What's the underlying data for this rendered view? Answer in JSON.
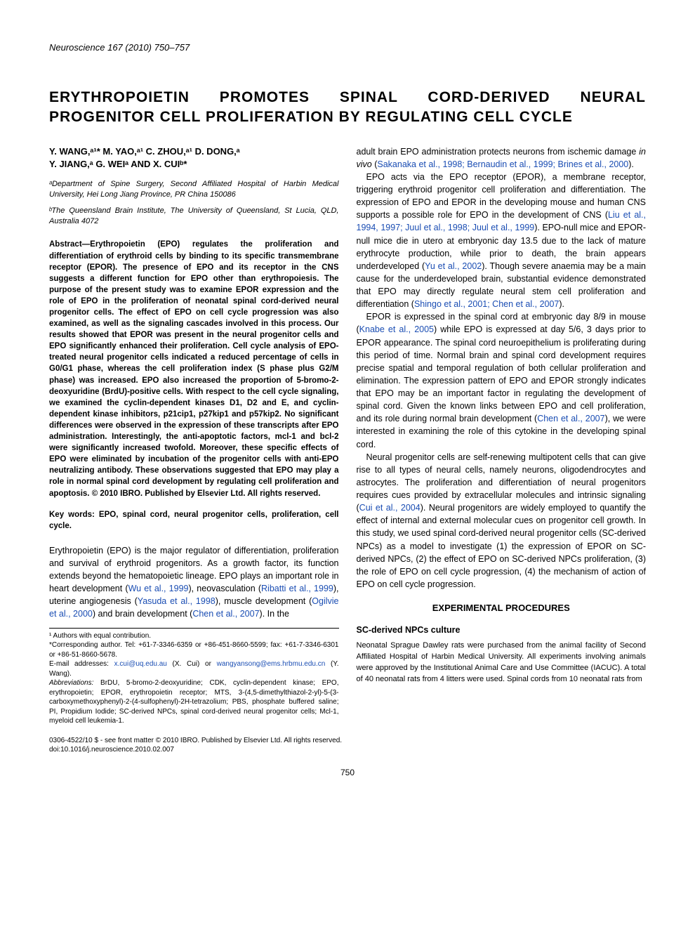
{
  "journal": "Neuroscience 167 (2010) 750–757",
  "title": "ERYTHROPOIETIN PROMOTES SPINAL CORD-DERIVED NEURAL PROGENITOR CELL PROLIFERATION BY REGULATING CELL CYCLE",
  "authors_line1": "Y. WANG,ᵃ¹* M. YAO,ᵃ¹ C. ZHOU,ᵃ¹ D. DONG,ᵃ",
  "authors_line2": "Y. JIANG,ᵃ G. WEIᵃ AND X. CUIᵇ*",
  "affil_a": "ᵃDepartment of Spine Surgery, Second Affiliated Hospital of Harbin Medical University, Hei Long Jiang Province, PR China 150086",
  "affil_b": "ᵇThe Queensland Brain Institute, The University of Queensland, St Lucia, QLD, Australia 4072",
  "abstract": "Abstract—Erythropoietin (EPO) regulates the proliferation and differentiation of erythroid cells by binding to its specific transmembrane receptor (EPOR). The presence of EPO and its receptor in the CNS suggests a different function for EPO other than erythropoiesis. The purpose of the present study was to examine EPOR expression and the role of EPO in the proliferation of neonatal spinal cord-derived neural progenitor cells. The effect of EPO on cell cycle progression was also examined, as well as the signaling cascades involved in this process. Our results showed that EPOR was present in the neural progenitor cells and EPO significantly enhanced their proliferation. Cell cycle analysis of EPO-treated neural progenitor cells indicated a reduced percentage of cells in G0/G1 phase, whereas the cell proliferation index (S phase plus G2/M phase) was increased. EPO also increased the proportion of 5-bromo-2-deoxyuridine (BrdU)-positive cells. With respect to the cell cycle signaling, we examined the cyclin-dependent kinases D1, D2 and E, and cyclin-dependent kinase inhibitors, p21cip1, p27kip1 and p57kip2. No significant differences were observed in the expression of these transcripts after EPO administration. Interestingly, the anti-apoptotic factors, mcl-1 and bcl-2 were significantly increased twofold. Moreover, these specific effects of EPO were eliminated by incubation of the progenitor cells with anti-EPO neutralizing antibody. These observations suggested that EPO may play a role in normal spinal cord development by regulating cell proliferation and apoptosis. © 2010 IBRO. Published by Elsevier Ltd. All rights reserved.",
  "keywords": "Key words: EPO, spinal cord, neural progenitor cells, proliferation, cell cycle.",
  "intro_p1_a": "Erythropoietin (EPO) is the major regulator of differentiation, proliferation and survival of erythroid progenitors. As a growth factor, its function extends beyond the hematopoietic lineage. EPO plays an important role in heart development (",
  "cite_wu": "Wu et al., 1999",
  "intro_p1_b": "), neovasculation (",
  "cite_ribatti": "Ribatti et al., 1999",
  "intro_p1_c": "), uterine angiogenesis (",
  "cite_yasuda": "Yasuda et al., 1998",
  "intro_p1_d": "), muscle development (",
  "cite_ogilvie": "Ogilvie et al., 2000",
  "intro_p1_e": ") and brain development (",
  "cite_chen07a": "Chen et al., 2007",
  "intro_p1_f": "). In the",
  "col2_p1_a": "adult brain EPO administration protects neurons from ischemic damage ",
  "col2_p1_a2": "in vivo",
  "col2_p1_a3": " (",
  "cite_sakanaka": "Sakanaka et al., 1998; Bernaudin et al., 1999; Brines et al., 2000",
  "col2_p1_b": ").",
  "col2_p2_a": "EPO acts via the EPO receptor (EPOR), a membrane receptor, triggering erythroid progenitor cell proliferation and differentiation. The expression of EPO and EPOR in the developing mouse and human CNS supports a possible role for EPO in the development of CNS (",
  "cite_liu": "Liu et al., 1994, 1997; Juul et al., 1998; Juul et al., 1999",
  "col2_p2_b": "). EPO-null mice and EPOR-null mice die in utero at embryonic day 13.5 due to the lack of mature erythrocyte production, while prior to death, the brain appears underdeveloped (",
  "cite_yu": "Yu et al., 2002",
  "col2_p2_c": "). Though severe anaemia may be a main cause for the underdeveloped brain, substantial evidence demonstrated that EPO may directly regulate neural stem cell proliferation and differentiation (",
  "cite_shingo": "Shingo et al., 2001; Chen et al., 2007",
  "col2_p2_d": ").",
  "col2_p3_a": "EPOR is expressed in the spinal cord at embryonic day 8/9 in mouse (",
  "cite_knabe": "Knabe et al., 2005",
  "col2_p3_b": ") while EPO is expressed at day 5/6, 3 days prior to EPOR appearance. The spinal cord neuroepithelium is proliferating during this period of time. Normal brain and spinal cord development requires precise spatial and temporal regulation of both cellular proliferation and elimination. The expression pattern of EPO and EPOR strongly indicates that EPO may be an important factor in regulating the development of spinal cord. Given the known links between EPO and cell proliferation, and its role during normal brain development (",
  "cite_chen07b": "Chen et al., 2007",
  "col2_p3_c": "), we were interested in examining the role of this cytokine in the developing spinal cord.",
  "col2_p4_a": "Neural progenitor cells are self-renewing multipotent cells that can give rise to all types of neural cells, namely neurons, oligodendrocytes and astrocytes. The proliferation and differentiation of neural progenitors requires cues provided by extracellular molecules and intrinsic signaling (",
  "cite_cui": "Cui et al., 2004",
  "col2_p4_b": "). Neural progenitors are widely employed to quantify the effect of internal and external molecular cues on progenitor cell growth. In this study, we used spinal cord-derived neural progenitor cells (SC-derived NPCs) as a model to investigate (1) the expression of EPOR on SC-derived NPCs, (2) the effect of EPO on SC-derived NPCs proliferation, (3) the role of EPO on cell cycle progression, (4) the mechanism of action of EPO on cell cycle progression.",
  "section_exp": "EXPERIMENTAL PROCEDURES",
  "subsection_culture": "SC-derived NPCs culture",
  "methods_p1": "Neonatal Sprague Dawley rats were purchased from the animal facility of Second Affiliated Hospital of Harbin Medical University. All experiments involving animals were approved by the Institutional Animal Care and Use Committee (IACUC). A total of 40 neonatal rats from 4 litters were used. Spinal cords from 10 neonatal rats from",
  "fn1": "¹ Authors with equal contribution.",
  "fn2": "*Corresponding author. Tel: +61-7-3346-6359 or +86-451-8660-5599; fax: +61-7-3346-6301 or +86-51-8660-5678.",
  "fn3_a": "E-mail addresses: ",
  "fn3_email1": "x.cui@uq.edu.au",
  "fn3_b": " (X. Cui) or ",
  "fn3_email2": "wangyansong@ems.hrbmu.edu.cn",
  "fn3_c": " (Y. Wang).",
  "fn_abbrev_label": "Abbreviations:",
  "fn_abbrev": " BrDU, 5-bromo-2-deoxyuridine; CDK, cyclin-dependent kinase; EPO, erythropoietin; EPOR, erythropoietin receptor; MTS, 3-(4,5-dimethylthiazol-2-yl)-5-(3-carboxymethoxyphenyl)-2-(4-sulfophenyl)-2H-tetrazolium; PBS, phosphate buffered saline; PI, Propidium Iodide; SC-derived NPCs, spinal cord-derived neural progenitor cells; Mcl-1, myeloid cell leukemia-1.",
  "copyright": "0306-4522/10 $ - see front matter © 2010 IBRO. Published by Elsevier Ltd. All rights reserved.",
  "doi": "doi:10.1016/j.neuroscience.2010.02.007",
  "pagenum": "750"
}
